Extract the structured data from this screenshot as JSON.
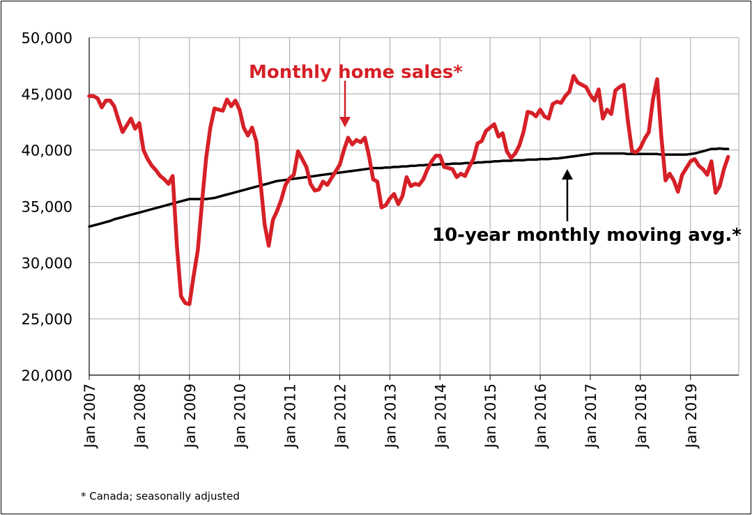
{
  "chart_data": {
    "type": "line",
    "title": "",
    "xlabel": "",
    "ylabel": "",
    "ylim": [
      20000,
      50000
    ],
    "yticks": [
      "20,000",
      "25,000",
      "30,000",
      "35,000",
      "40,000",
      "45,000",
      "50,000"
    ],
    "xticks": [
      "Jan 2007",
      "Jan 2008",
      "Jan 2009",
      "Jan 2010",
      "Jan 2011",
      "Jan 2012",
      "Jan 2013",
      "Jan 2014",
      "Jan 2015",
      "Jan 2016",
      "Jan 2017",
      "Jan 2018",
      "Jan 2019"
    ],
    "grid": "horizontal and vertical",
    "x_start": "2007-01",
    "x_frequency": "monthly",
    "series": [
      {
        "name": "Monthly home sales*",
        "color": "#d62027",
        "values": [
          44800,
          44800,
          44600,
          43800,
          44400,
          44400,
          43900,
          42700,
          41600,
          42200,
          42800,
          41900,
          42400,
          40000,
          39200,
          38600,
          38200,
          37700,
          37400,
          37000,
          37700,
          31500,
          27000,
          26400,
          26300,
          28800,
          31100,
          35300,
          39300,
          42000,
          43700,
          43600,
          43500,
          44500,
          43900,
          44400,
          43600,
          42000,
          41300,
          42000,
          40800,
          37200,
          33400,
          31500,
          33800,
          34600,
          35600,
          36900,
          37500,
          37800,
          39900,
          39200,
          38500,
          37000,
          36400,
          36500,
          37200,
          36900,
          37500,
          38100,
          38700,
          40000,
          41100,
          40500,
          40900,
          40700,
          41100,
          39500,
          37400,
          37200,
          34900,
          35100,
          35700,
          36100,
          35200,
          35900,
          37600,
          36800,
          37000,
          36900,
          37400,
          38300,
          39000,
          39500,
          39500,
          38500,
          38400,
          38300,
          37600,
          37900,
          37700,
          38500,
          39200,
          40600,
          40800,
          41700,
          42000,
          42300,
          41200,
          41500,
          39900,
          39300,
          39700,
          40400,
          41600,
          43400,
          43300,
          43000,
          43600,
          43000,
          42800,
          44100,
          44300,
          44200,
          44800,
          45200,
          46600,
          46000,
          45800,
          45600,
          44900,
          44400,
          45400,
          42800,
          43600,
          43200,
          45300,
          45600,
          45800,
          42600,
          39900,
          39800,
          40200,
          41000,
          41600,
          44500,
          46300,
          41200,
          37300,
          37900,
          37300,
          36300,
          37800,
          38400,
          39000,
          39200,
          38600,
          38300,
          37800,
          39000,
          36200,
          36800,
          38300,
          39400
        ]
      },
      {
        "name": "10-year monthly moving avg.*",
        "color": "#000000",
        "values": [
          33200,
          33300,
          33400,
          33500,
          33600,
          33700,
          33850,
          33950,
          34050,
          34150,
          34250,
          34350,
          34450,
          34550,
          34650,
          34750,
          34850,
          34950,
          35050,
          35150,
          35250,
          35350,
          35450,
          35550,
          35650,
          35650,
          35650,
          35650,
          35650,
          35700,
          35750,
          35850,
          35950,
          36050,
          36150,
          36250,
          36350,
          36450,
          36550,
          36650,
          36750,
          36850,
          36950,
          37050,
          37150,
          37250,
          37300,
          37350,
          37400,
          37450,
          37500,
          37550,
          37600,
          37650,
          37700,
          37750,
          37800,
          37850,
          37900,
          37950,
          38000,
          38050,
          38100,
          38150,
          38200,
          38250,
          38300,
          38350,
          38400,
          38400,
          38400,
          38450,
          38450,
          38500,
          38500,
          38550,
          38550,
          38600,
          38600,
          38650,
          38650,
          38700,
          38700,
          38700,
          38750,
          38750,
          38750,
          38800,
          38800,
          38800,
          38850,
          38850,
          38850,
          38900,
          38900,
          38950,
          38950,
          39000,
          39000,
          39050,
          39050,
          39050,
          39100,
          39100,
          39100,
          39150,
          39150,
          39150,
          39200,
          39200,
          39200,
          39250,
          39250,
          39300,
          39350,
          39400,
          39450,
          39500,
          39550,
          39600,
          39650,
          39700,
          39700,
          39700,
          39700,
          39700,
          39700,
          39700,
          39700,
          39650,
          39650,
          39650,
          39650,
          39650,
          39650,
          39650,
          39650,
          39600,
          39600,
          39600,
          39600,
          39600,
          39600,
          39600,
          39650,
          39700,
          39800,
          39900,
          40000,
          40100,
          40100,
          40150,
          40100,
          40100
        ]
      }
    ],
    "annotations": [
      {
        "text": "Monthly home sales*",
        "color": "#d62027",
        "arrow_to": "2012-02"
      },
      {
        "text": "10-year monthly moving avg.*",
        "color": "#000000",
        "arrow_to": "2016-07"
      }
    ]
  },
  "footnote": "* Canada; seasonally adjusted",
  "colors": {
    "sales": "#d62027",
    "average": "#000000",
    "grid": "#a6a6a6",
    "background": "#ffffff"
  }
}
